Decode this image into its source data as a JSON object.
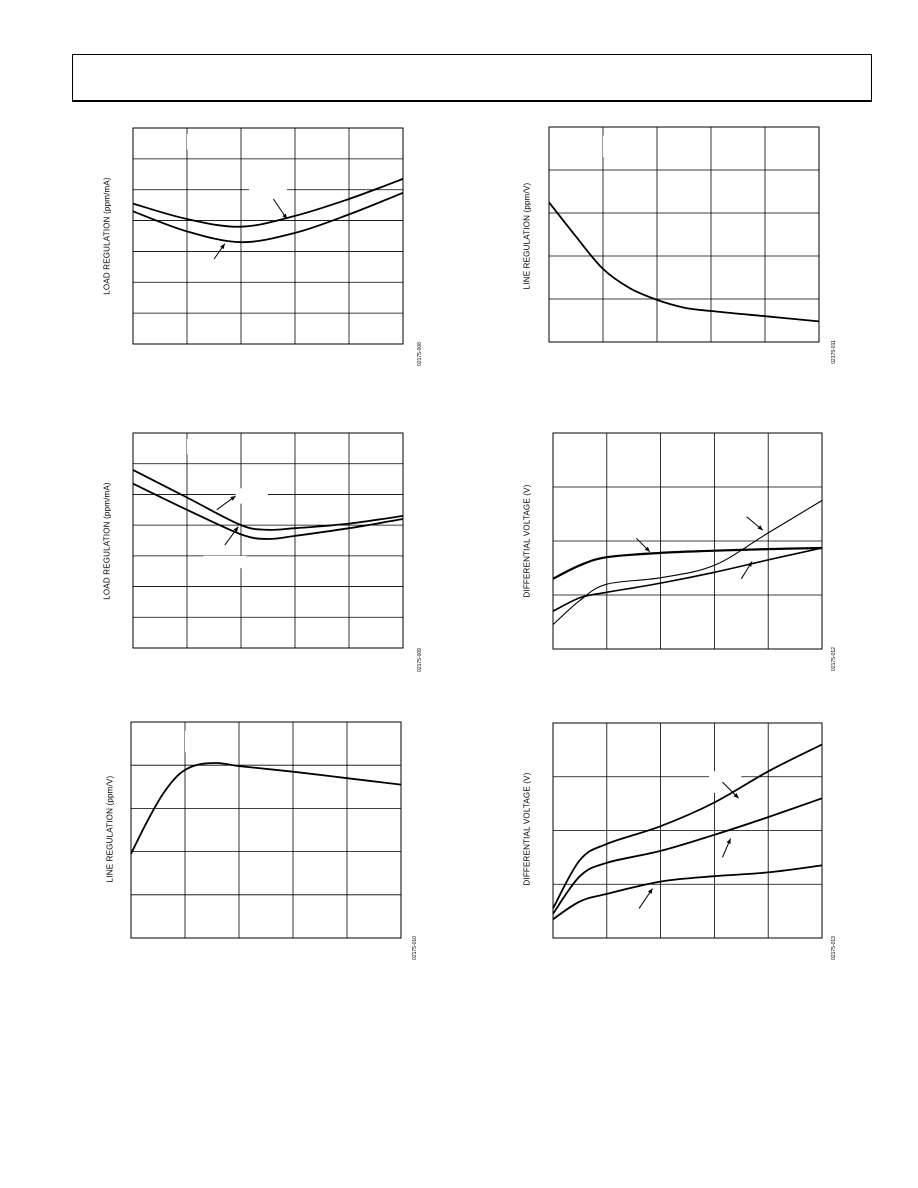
{
  "charts": [
    {
      "id": "c1",
      "ylabel": "LOAD REGULATION (ppm/mA)",
      "code": "02175-008",
      "chart_data": {
        "type": "line",
        "xlim": [
          0,
          5
        ],
        "ylim": [
          0,
          7
        ],
        "grid": true,
        "series": [
          {
            "x": [
              0,
              1,
              2,
              3,
              4,
              5
            ],
            "y": [
              4.55,
              4.05,
              3.8,
              4.15,
              4.7,
              5.35
            ]
          },
          {
            "x": [
              0,
              1,
              2,
              3,
              4,
              5
            ],
            "y": [
              4.3,
              3.65,
              3.3,
              3.6,
              4.2,
              4.9
            ]
          }
        ],
        "annotations": [
          {
            "type": "arrow",
            "from": [
              2.6,
              4.7
            ],
            "to": [
              2.85,
              4.05
            ]
          },
          {
            "type": "arrow",
            "from": [
              1.5,
              2.75
            ],
            "to": [
              1.7,
              3.25
            ]
          }
        ],
        "masks": [
          [
            1.0,
            6.8,
            1.8,
            6.3
          ],
          [
            2.15,
            5.2,
            2.85,
            4.75
          ]
        ]
      }
    },
    {
      "id": "c2",
      "ylabel": "LINE REGULATION (ppm/V)",
      "code": "02175-011",
      "chart_data": {
        "type": "line",
        "xlim": [
          0,
          5
        ],
        "ylim": [
          0,
          5
        ],
        "grid": true,
        "series": [
          {
            "x": [
              0,
              0.5,
              1,
              1.5,
              2,
              2.5,
              3,
              4,
              5
            ],
            "y": [
              3.25,
              2.45,
              1.7,
              1.25,
              0.98,
              0.8,
              0.72,
              0.6,
              0.48
            ]
          }
        ],
        "annotations": [],
        "masks": [
          [
            1.0,
            4.8,
            1.7,
            4.3
          ]
        ]
      }
    },
    {
      "id": "c3",
      "ylabel": "LOAD REGULATION (ppm/mA)",
      "code": "02175-009",
      "chart_data": {
        "type": "line",
        "xlim": [
          0,
          5
        ],
        "ylim": [
          0,
          7
        ],
        "grid": true,
        "series": [
          {
            "x": [
              0,
              1,
              2,
              2.5,
              3,
              4,
              5
            ],
            "y": [
              5.8,
              4.9,
              4.0,
              3.85,
              3.9,
              4.05,
              4.3
            ]
          },
          {
            "x": [
              0,
              1,
              2,
              2.5,
              3,
              4,
              5
            ],
            "y": [
              5.35,
              4.5,
              3.7,
              3.55,
              3.65,
              3.9,
              4.2
            ]
          }
        ],
        "annotations": [
          {
            "type": "arrow",
            "from": [
              1.55,
              4.5
            ],
            "to": [
              1.9,
              4.95
            ]
          },
          {
            "type": "arrow",
            "from": [
              1.7,
              3.35
            ],
            "to": [
              1.95,
              3.95
            ]
          }
        ],
        "masks": [
          [
            1.0,
            6.8,
            1.8,
            6.3
          ],
          [
            1.9,
            5.2,
            2.5,
            4.7
          ],
          [
            1.3,
            3.0,
            2.1,
            2.6
          ]
        ]
      }
    },
    {
      "id": "c4",
      "ylabel": "DIFFERENTIAL VOLTAGE (V)",
      "code": "02175-012",
      "chart_data": {
        "type": "line",
        "xlim": [
          0,
          5
        ],
        "ylim": [
          0,
          4
        ],
        "grid": true,
        "series": [
          {
            "x": [
              0,
              0.5,
              1,
              2,
              3,
              4,
              5
            ],
            "y": [
              1.3,
              1.55,
              1.7,
              1.78,
              1.82,
              1.85,
              1.87
            ],
            "width": 2.2
          },
          {
            "x": [
              0,
              0.5,
              1,
              2,
              3,
              4,
              5
            ],
            "y": [
              0.45,
              0.9,
              1.2,
              1.32,
              1.55,
              2.15,
              2.75
            ],
            "width": 1.1
          },
          {
            "x": [
              0,
              0.5,
              1,
              2,
              3,
              4,
              5
            ],
            "y": [
              0.7,
              0.95,
              1.05,
              1.22,
              1.42,
              1.65,
              1.87
            ],
            "width": 1.6
          }
        ],
        "annotations": [
          {
            "type": "arrow",
            "from": [
              1.55,
              2.05
            ],
            "to": [
              1.8,
              1.8
            ]
          },
          {
            "type": "arrow",
            "from": [
              3.6,
              2.45
            ],
            "to": [
              3.9,
              2.2
            ]
          },
          {
            "type": "arrow",
            "from": [
              3.5,
              1.3
            ],
            "to": [
              3.7,
              1.62
            ]
          }
        ]
      }
    },
    {
      "id": "c5",
      "ylabel": "LINE REGULATION (ppm/V)",
      "code": "02175-010",
      "chart_data": {
        "type": "line",
        "xlim": [
          0,
          5
        ],
        "ylim": [
          0,
          5
        ],
        "grid": true,
        "series": [
          {
            "x": [
              0,
              0.3,
              0.6,
              0.9,
              1.2,
              1.6,
              2,
              3,
              4,
              5
            ],
            "y": [
              1.95,
              2.7,
              3.35,
              3.8,
              4.0,
              4.05,
              3.98,
              3.85,
              3.7,
              3.55
            ]
          }
        ],
        "annotations": [],
        "masks": [
          [
            1.0,
            4.8,
            1.7,
            4.3
          ]
        ]
      }
    },
    {
      "id": "c6",
      "ylabel": "DIFFERENTIAL VOLTAGE (V)",
      "code": "02175-013",
      "chart_data": {
        "type": "line",
        "xlim": [
          0,
          5
        ],
        "ylim": [
          0,
          4
        ],
        "grid": true,
        "series": [
          {
            "x": [
              0,
              0.5,
              1,
              2,
              3,
              4,
              5
            ],
            "y": [
              0.55,
              1.45,
              1.75,
              2.08,
              2.52,
              3.1,
              3.6
            ]
          },
          {
            "x": [
              0,
              0.5,
              1,
              2,
              3,
              4,
              5
            ],
            "y": [
              0.45,
              1.15,
              1.4,
              1.62,
              1.92,
              2.25,
              2.6
            ]
          },
          {
            "x": [
              0,
              0.5,
              1,
              2,
              3,
              4,
              5
            ],
            "y": [
              0.35,
              0.68,
              0.82,
              1.05,
              1.15,
              1.22,
              1.35
            ]
          }
        ],
        "annotations": [
          {
            "type": "arrow",
            "from": [
              3.15,
              2.9
            ],
            "to": [
              3.45,
              2.6
            ]
          },
          {
            "type": "arrow",
            "from": [
              3.15,
              1.5
            ],
            "to": [
              3.3,
              1.85
            ]
          },
          {
            "type": "arrow",
            "from": [
              1.6,
              0.55
            ],
            "to": [
              1.85,
              0.92
            ]
          }
        ],
        "masks": [
          [
            2.9,
            3.1,
            3.5,
            2.7
          ]
        ]
      }
    }
  ]
}
